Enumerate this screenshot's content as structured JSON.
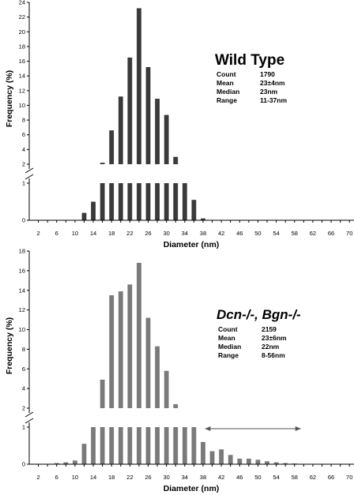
{
  "chart_data": [
    {
      "type": "bar",
      "title": "Wild Type",
      "title_style": "bold",
      "xlabel": "Diameter (nm)",
      "ylabel": "Frequency (%)",
      "bar_color": "#3a3a3a",
      "x_ticks": [
        2,
        6,
        10,
        14,
        18,
        22,
        26,
        30,
        34,
        38,
        42,
        46,
        50,
        54,
        58,
        62,
        66,
        70
      ],
      "x": [
        2,
        4,
        6,
        8,
        10,
        12,
        14,
        16,
        18,
        20,
        22,
        24,
        26,
        28,
        30,
        32,
        34,
        36,
        38,
        40,
        42,
        44,
        46,
        48,
        50,
        52,
        54,
        56,
        58,
        60,
        62,
        64,
        66,
        68,
        70
      ],
      "values": [
        0,
        0,
        0,
        0,
        0,
        0.2,
        0.5,
        2.2,
        6.6,
        11.2,
        16.5,
        23.2,
        15.2,
        10.9,
        8.7,
        3.0,
        1.1,
        0.55,
        0.05,
        0,
        0,
        0,
        0,
        0,
        0,
        0,
        0,
        0,
        0,
        0,
        0,
        0,
        0,
        0,
        0
      ],
      "y_axis_broken": true,
      "y_lower_ticks": [
        0,
        1
      ],
      "y_upper_ticks": [
        2,
        4,
        6,
        8,
        10,
        12,
        14,
        16,
        18,
        20,
        22,
        24
      ],
      "stats": [
        {
          "label": "Count",
          "value": "1790"
        },
        {
          "label": "Mean",
          "value": "23±4nm"
        },
        {
          "label": "Median",
          "value": "23nm"
        },
        {
          "label": "Range",
          "value": "11-37nm"
        }
      ]
    },
    {
      "type": "bar",
      "title": "Dcn-/-, Bgn-/-",
      "title_style": "bold-italic",
      "xlabel": "Diameter (nm)",
      "ylabel": "Frequency (%)",
      "bar_color": "#7a7a7a",
      "x_ticks": [
        2,
        6,
        10,
        14,
        18,
        22,
        26,
        30,
        34,
        38,
        42,
        46,
        50,
        54,
        58,
        62,
        66,
        70
      ],
      "x": [
        2,
        4,
        6,
        8,
        10,
        12,
        14,
        16,
        18,
        20,
        22,
        24,
        26,
        28,
        30,
        32,
        34,
        36,
        38,
        40,
        42,
        44,
        46,
        48,
        50,
        52,
        54,
        56,
        58,
        60,
        62,
        64,
        66,
        68,
        70
      ],
      "values": [
        0,
        0,
        0.03,
        0.05,
        0.1,
        0.55,
        2.0,
        4.9,
        13.5,
        13.9,
        14.6,
        16.8,
        11.2,
        8.3,
        5.8,
        2.4,
        1.3,
        1.1,
        0.6,
        0.35,
        0.4,
        0.25,
        0.15,
        0.15,
        0.12,
        0.08,
        0.05,
        0.03,
        0.02,
        0,
        0,
        0,
        0,
        0,
        0
      ],
      "y_axis_broken": true,
      "y_lower_ticks": [
        0,
        1
      ],
      "y_upper_ticks": [
        2,
        4,
        6,
        8,
        10,
        12,
        14,
        16,
        18
      ],
      "range_arrow": {
        "from": 36,
        "to": 58
      },
      "stats": [
        {
          "label": "Count",
          "value": "2159"
        },
        {
          "label": "Mean",
          "value": "23±6nm"
        },
        {
          "label": "Median",
          "value": "22nm"
        },
        {
          "label": "Range",
          "value": "8-56nm"
        }
      ]
    }
  ]
}
